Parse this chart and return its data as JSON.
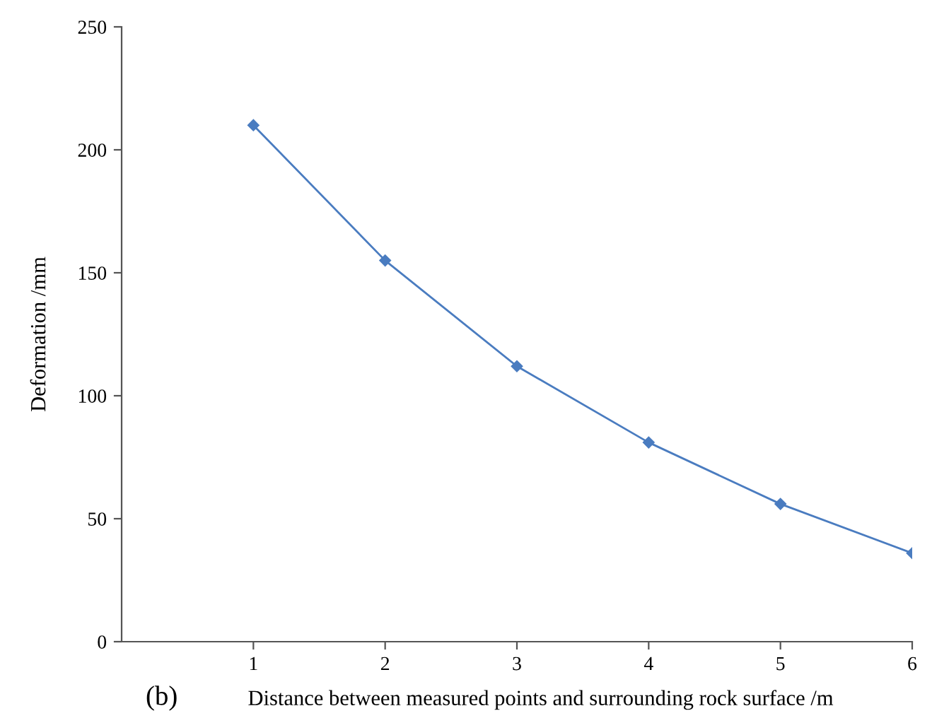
{
  "chart_data": {
    "type": "line",
    "xlabel": "Distance between measured points and surrounding rock surface /m",
    "ylabel": "Deformation /mm",
    "annotations": [
      "(b)"
    ],
    "x": [
      1,
      2,
      3,
      4,
      5,
      6
    ],
    "series": [
      {
        "color": "#4a7cc0",
        "values": [
          210,
          155,
          112,
          81,
          56,
          36
        ]
      }
    ],
    "xlim": [
      0,
      6
    ],
    "xticks": [
      1,
      2,
      3,
      4,
      5,
      6
    ],
    "ylim": [
      0,
      250
    ],
    "yticks": [
      0,
      50,
      100,
      150,
      200,
      250
    ],
    "marker": "diamond",
    "line_style": "solid",
    "grid": false,
    "legend": false
  }
}
